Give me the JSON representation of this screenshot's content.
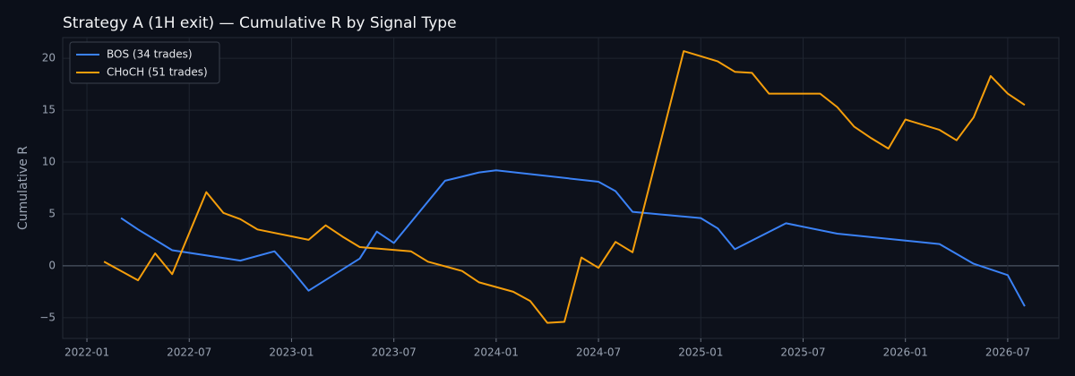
{
  "chart_data": {
    "type": "line",
    "title": "Strategy A (1H exit) — Cumulative R by Signal Type",
    "y_label": "Cumulative R",
    "xlim": [
      "2021-12",
      "2026-10"
    ],
    "xticks": [
      "2022-01",
      "2022-07",
      "2023-01",
      "2023-07",
      "2024-01",
      "2024-07",
      "2025-01",
      "2025-07",
      "2026-01",
      "2026-07"
    ],
    "ylim": [
      -7,
      22
    ],
    "yticks": [
      {
        "value": -5,
        "label": "−5"
      },
      0,
      5,
      10,
      15,
      20
    ],
    "grid": true,
    "legend": "upper-left",
    "series": [
      {
        "name": "BOS (34 trades)",
        "color": "#3b82f6",
        "x": [
          "2022-03",
          "2022-04",
          "2022-05",
          "2022-06",
          "2022-10",
          "2022-12",
          "2023-01",
          "2023-02",
          "2023-05",
          "2023-06",
          "2023-07",
          "2023-10",
          "2023-12",
          "2024-01",
          "2024-07",
          "2024-08",
          "2024-09",
          "2025-01",
          "2025-02",
          "2025-03",
          "2025-06",
          "2025-09",
          "2026-03",
          "2026-05",
          "2026-07",
          "2026-08"
        ],
        "values": [
          4.6,
          3.5,
          2.5,
          1.5,
          0.5,
          1.4,
          -0.4,
          -2.4,
          0.7,
          3.3,
          2.2,
          8.2,
          9.0,
          9.2,
          8.1,
          7.2,
          5.2,
          4.6,
          3.6,
          1.6,
          4.1,
          3.1,
          2.1,
          0.2,
          -0.9,
          -3.9
        ]
      },
      {
        "name": "CHoCH (51 trades)",
        "color": "#f59e0b",
        "x": [
          "2022-02",
          "2022-04",
          "2022-05",
          "2022-06",
          "2022-08",
          "2022-09",
          "2022-10",
          "2022-11",
          "2023-02",
          "2023-03",
          "2023-04",
          "2023-05",
          "2023-08",
          "2023-09",
          "2023-11",
          "2023-12",
          "2024-02",
          "2024-03",
          "2024-04",
          "2024-05",
          "2024-06",
          "2024-07",
          "2024-08",
          "2024-09",
          "2024-12",
          "2025-02",
          "2025-03",
          "2025-04",
          "2025-05",
          "2025-08",
          "2025-09",
          "2025-10",
          "2025-11",
          "2025-12",
          "2026-01",
          "2026-03",
          "2026-04",
          "2026-05",
          "2026-06",
          "2026-07",
          "2026-08"
        ],
        "values": [
          0.4,
          -1.4,
          1.2,
          -0.8,
          7.1,
          5.1,
          4.5,
          3.5,
          2.5,
          3.9,
          2.8,
          1.8,
          1.4,
          0.4,
          -0.5,
          -1.6,
          -2.5,
          -3.4,
          -5.5,
          -5.4,
          0.8,
          -0.2,
          2.3,
          1.3,
          20.7,
          19.7,
          18.7,
          18.6,
          16.6,
          16.6,
          15.3,
          13.4,
          12.3,
          11.3,
          14.1,
          13.1,
          12.1,
          14.3,
          18.3,
          16.6,
          15.5
        ]
      }
    ]
  }
}
